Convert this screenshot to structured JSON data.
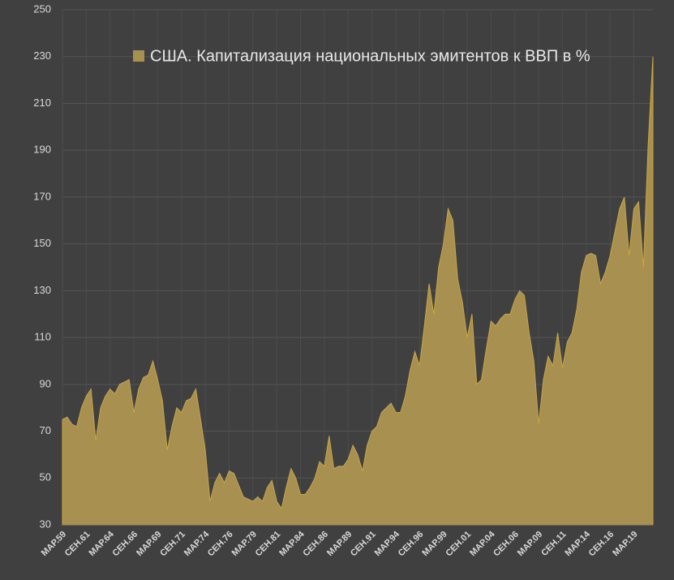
{
  "chart_data": {
    "type": "area",
    "categories": [
      "МАР.59",
      null,
      null,
      null,
      null,
      "СЕН.61",
      null,
      null,
      null,
      null,
      "МАР.64",
      null,
      null,
      null,
      null,
      "СЕН.66",
      null,
      null,
      null,
      null,
      "МАР.69",
      null,
      null,
      null,
      null,
      "СЕН.71",
      null,
      null,
      null,
      null,
      "МАР.74",
      null,
      null,
      null,
      null,
      "СЕН.76",
      null,
      null,
      null,
      null,
      "МАР.79",
      null,
      null,
      null,
      null,
      "СЕН.81",
      null,
      null,
      null,
      null,
      "МАР.84",
      null,
      null,
      null,
      null,
      "СЕН.86",
      null,
      null,
      null,
      null,
      "МАР.89",
      null,
      null,
      null,
      null,
      "СЕН.91",
      null,
      null,
      null,
      null,
      "МАР.94",
      null,
      null,
      null,
      null,
      "СЕН.96",
      null,
      null,
      null,
      null,
      "МАР.99",
      null,
      null,
      null,
      null,
      "СЕН.01",
      null,
      null,
      null,
      null,
      "МАР.04",
      null,
      null,
      null,
      null,
      "СЕН.06",
      null,
      null,
      null,
      null,
      "МАР.09",
      null,
      null,
      null,
      null,
      "СЕН.11",
      null,
      null,
      null,
      null,
      "МАР.14",
      null,
      null,
      null,
      null,
      "СЕН.16",
      null,
      null,
      null,
      null,
      "МАР.19",
      null,
      null,
      null,
      null
    ],
    "series": [
      {
        "name": "США. Капитализация национальных эмитентов к ВВП в %",
        "color": "#a89050",
        "values": [
          75,
          76,
          73,
          72,
          80,
          85,
          88,
          66,
          80,
          85,
          88,
          86,
          90,
          91,
          92,
          78,
          88,
          93,
          94,
          100,
          92,
          83,
          62,
          72,
          80,
          78,
          83,
          84,
          88,
          75,
          62,
          40,
          48,
          52,
          48,
          53,
          52,
          47,
          42,
          41,
          40,
          42,
          40,
          46,
          49,
          40,
          37,
          46,
          54,
          50,
          43,
          43,
          46,
          50,
          57,
          55,
          68,
          54,
          55,
          55,
          58,
          64,
          60,
          53,
          64,
          70,
          72,
          78,
          80,
          82,
          78,
          78,
          85,
          96,
          104,
          98,
          115,
          133,
          120,
          140,
          150,
          165,
          160,
          135,
          125,
          110,
          120,
          90,
          92,
          105,
          117,
          115,
          118,
          120,
          120,
          126,
          130,
          128,
          112,
          100,
          73,
          92,
          102,
          98,
          112,
          97,
          108,
          112,
          122,
          138,
          145,
          146,
          145,
          133,
          138,
          145,
          155,
          165,
          170,
          145,
          165,
          168,
          140,
          192,
          230
        ]
      }
    ],
    "ylim": [
      30,
      250
    ],
    "yticks": [
      30,
      50,
      70,
      90,
      110,
      130,
      150,
      170,
      190,
      210,
      230,
      250
    ],
    "grid": true,
    "legend": "top"
  }
}
